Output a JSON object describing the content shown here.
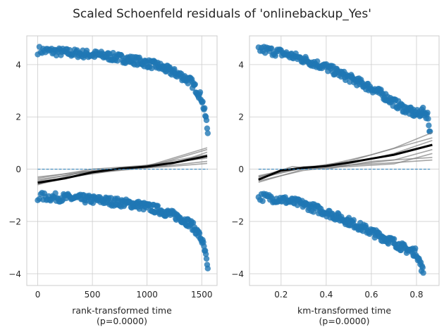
{
  "title": "Scaled Schoenfeld residuals of 'onlinebackup_Yes'",
  "colors": {
    "points": "#1f77b4",
    "loess_main": "#000000",
    "loess_boot": "#808080",
    "zero_line": "#1f77b4",
    "grid": "#cccccc",
    "background": "#ffffff"
  },
  "chart_data": [
    {
      "type": "scatter",
      "xlabel": "rank-transformed time",
      "xnote": "(p=0.0000)",
      "xlim": [
        -100,
        1640
      ],
      "ylim": [
        -4.45,
        5.1
      ],
      "xticks": [
        0,
        500,
        1000,
        1500
      ],
      "yticks": [
        -4,
        -2,
        0,
        2,
        4
      ],
      "grid": true,
      "residuals": {
        "upper_band": {
          "x": [
            0,
            300,
            600,
            900,
            1100,
            1300,
            1400,
            1450,
            1500,
            1520,
            1540,
            1555
          ],
          "y": [
            4.55,
            4.45,
            4.35,
            4.15,
            3.95,
            3.6,
            3.35,
            3.05,
            2.7,
            2.3,
            1.9,
            1.4
          ]
        },
        "lower_band": {
          "x": [
            0,
            300,
            600,
            900,
            1100,
            1300,
            1400,
            1450,
            1500,
            1520,
            1540,
            1555
          ],
          "y": [
            -1.05,
            -1.1,
            -1.2,
            -1.35,
            -1.55,
            -1.85,
            -2.1,
            -2.35,
            -2.7,
            -3.0,
            -3.4,
            -3.95
          ]
        }
      },
      "loess_fit": {
        "x": [
          0,
          250,
          500,
          750,
          1000,
          1250,
          1550
        ],
        "y": [
          -0.52,
          -0.35,
          -0.12,
          0.02,
          0.1,
          0.25,
          0.5
        ]
      },
      "bootstrap_fits": [
        {
          "x": [
            0,
            500,
            1000,
            1550
          ],
          "y": [
            -0.4,
            -0.08,
            0.12,
            0.82
          ]
        },
        {
          "x": [
            0,
            500,
            1000,
            1550
          ],
          "y": [
            -0.58,
            -0.15,
            0.05,
            0.3
          ]
        },
        {
          "x": [
            0,
            300,
            700,
            1200,
            1550
          ],
          "y": [
            -0.45,
            -0.2,
            0.0,
            0.15,
            0.65
          ]
        },
        {
          "x": [
            0,
            500,
            1000,
            1550
          ],
          "y": [
            -0.35,
            0.0,
            0.15,
            0.42
          ]
        },
        {
          "x": [
            0,
            400,
            900,
            1550
          ],
          "y": [
            -0.6,
            -0.1,
            0.08,
            0.55
          ]
        },
        {
          "x": [
            0,
            500,
            1100,
            1550
          ],
          "y": [
            -0.48,
            -0.18,
            0.2,
            0.75
          ]
        },
        {
          "x": [
            0,
            600,
            1200,
            1550
          ],
          "y": [
            -0.3,
            -0.02,
            0.1,
            0.22
          ]
        }
      ],
      "zero_line": 0
    },
    {
      "type": "scatter",
      "xlabel": "km-transformed time",
      "xnote": "(p=0.0000)",
      "xlim": [
        0.06,
        0.9
      ],
      "ylim": [
        -4.45,
        5.1
      ],
      "xticks": [
        0.2,
        0.4,
        0.6,
        0.8
      ],
      "yticks": [
        -4,
        -2,
        0,
        2,
        4
      ],
      "grid": true,
      "residuals": {
        "upper_band": {
          "x": [
            0.1,
            0.2,
            0.3,
            0.4,
            0.5,
            0.6,
            0.65,
            0.7,
            0.75,
            0.8,
            0.83,
            0.85,
            0.86
          ],
          "y": [
            4.6,
            4.45,
            4.2,
            3.9,
            3.5,
            3.1,
            2.85,
            2.55,
            2.3,
            2.1,
            2.2,
            2.05,
            1.4
          ]
        },
        "lower_band": {
          "x": [
            0.1,
            0.2,
            0.3,
            0.4,
            0.5,
            0.6,
            0.65,
            0.7,
            0.75,
            0.8,
            0.83
          ],
          "y": [
            -1.05,
            -1.15,
            -1.35,
            -1.65,
            -2.0,
            -2.4,
            -2.6,
            -2.8,
            -3.05,
            -3.2,
            -3.95
          ]
        }
      },
      "loess_fit": {
        "x": [
          0.1,
          0.2,
          0.3,
          0.4,
          0.5,
          0.6,
          0.7,
          0.87
        ],
        "y": [
          -0.4,
          -0.05,
          0.05,
          0.12,
          0.25,
          0.4,
          0.55,
          0.93
        ]
      },
      "bootstrap_fits": [
        {
          "x": [
            0.1,
            0.3,
            0.5,
            0.7,
            0.87
          ],
          "y": [
            -0.35,
            0.05,
            0.3,
            0.8,
            1.4
          ]
        },
        {
          "x": [
            0.1,
            0.3,
            0.5,
            0.7,
            0.87
          ],
          "y": [
            -0.45,
            -0.05,
            0.15,
            0.35,
            0.75
          ]
        },
        {
          "x": [
            0.1,
            0.25,
            0.4,
            0.6,
            0.87
          ],
          "y": [
            -0.3,
            0.1,
            0.0,
            0.3,
            0.45
          ]
        },
        {
          "x": [
            0.1,
            0.3,
            0.5,
            0.7,
            0.87
          ],
          "y": [
            -0.5,
            0.0,
            0.2,
            0.6,
            1.1
          ]
        },
        {
          "x": [
            0.1,
            0.3,
            0.5,
            0.7,
            0.87
          ],
          "y": [
            -0.25,
            0.1,
            0.15,
            0.25,
            0.35
          ]
        },
        {
          "x": [
            0.1,
            0.2,
            0.4,
            0.6,
            0.87
          ],
          "y": [
            -0.4,
            -0.1,
            0.15,
            0.55,
            1.2
          ]
        },
        {
          "x": [
            0.1,
            0.3,
            0.5,
            0.7,
            0.87
          ],
          "y": [
            -0.3,
            0.05,
            0.1,
            0.2,
            0.6
          ]
        }
      ],
      "zero_line": 0
    }
  ]
}
